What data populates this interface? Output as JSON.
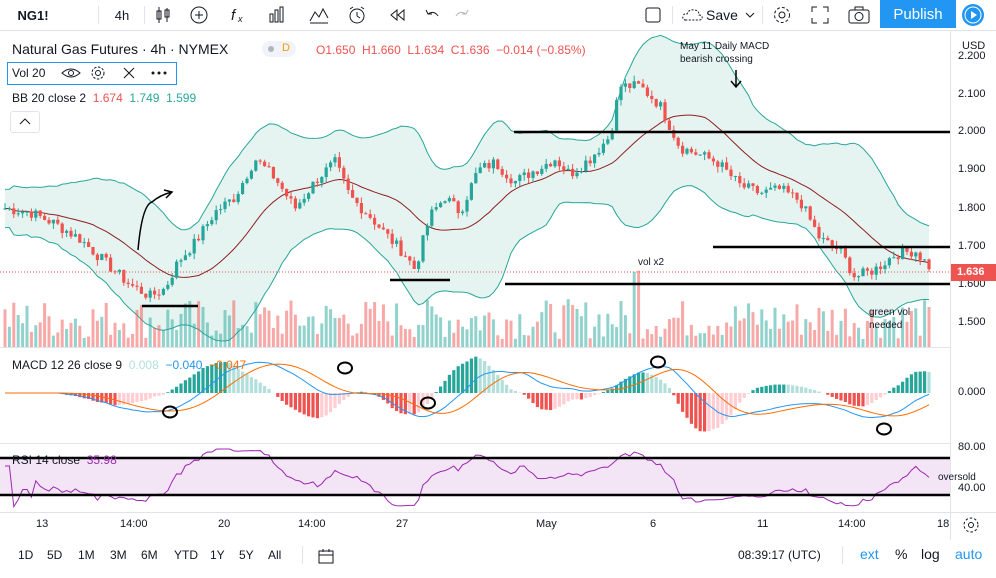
{
  "toolbar": {
    "symbol": "NG1!",
    "interval": "4h",
    "save_label": "Save",
    "publish_label": "Publish"
  },
  "main_legend": {
    "title": "Natural Gas Futures · 4h · NYMEX",
    "d_badge": "D",
    "open": "O1.650",
    "high": "H1.660",
    "low": "L1.634",
    "close": "C1.636",
    "change": "−0.014 (−0.85%)"
  },
  "vol_legend": {
    "label": "Vol 20"
  },
  "bb_legend": {
    "label": "BB 20 close 2",
    "v1": "1.674",
    "v2": "1.749",
    "v3": "1.599"
  },
  "macd_legend": {
    "label": "MACD 12 26 close 9",
    "v1": "0.008",
    "v2": "−0.040",
    "v3": "−0.047"
  },
  "rsi_legend": {
    "label": "RSI 14 close",
    "v1": "35.98"
  },
  "price_axis": {
    "currency": "USD",
    "ticks": [
      "2.200",
      "2.100",
      "2.000",
      "1.900",
      "1.800",
      "1.700",
      "1.600",
      "1.500"
    ],
    "last_price": "1.636"
  },
  "macd_axis": {
    "ticks": [
      "0.000"
    ]
  },
  "rsi_axis": {
    "ticks": [
      "80.00",
      "40.00"
    ]
  },
  "time_axis": {
    "ticks": [
      "13",
      "14:00",
      "20",
      "14:00",
      "27",
      "May",
      "6",
      "11",
      "14:00",
      "18"
    ]
  },
  "annotations": {
    "macd_note": "May 11 Daily MACD",
    "macd_note2": "bearish crossing",
    "vol_note": "vol x2",
    "green_vol_1": "green vol",
    "green_vol_2": "needed",
    "oversold": "oversold"
  },
  "bottom": {
    "ranges": [
      "1D",
      "5D",
      "1M",
      "3M",
      "6M",
      "YTD",
      "1Y",
      "5Y",
      "All"
    ],
    "clock": "08:39:17 (UTC)",
    "ext": "ext",
    "pct": "%",
    "log": "log",
    "auto": "auto"
  },
  "colors": {
    "up": "#26a69a",
    "down": "#ef5350",
    "accent": "#2196f3",
    "rsi": "#9c27b0",
    "bb_fill": "#e6f4f1"
  }
}
